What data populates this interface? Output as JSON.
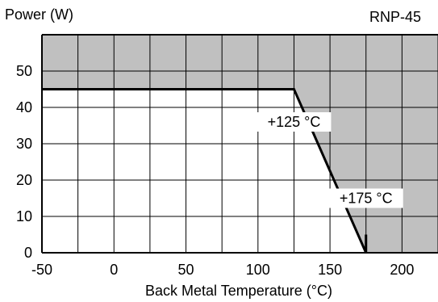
{
  "chart_data": {
    "type": "line",
    "title": "RNP-45",
    "ylabel": "Power (W)",
    "xlabel": "Back Metal Temperature (°C)",
    "xlim": [
      -50,
      225
    ],
    "ylim": [
      0,
      60
    ],
    "x_ticks": [
      -50,
      0,
      50,
      100,
      150,
      200
    ],
    "y_ticks": [
      0,
      10,
      20,
      30,
      40,
      50
    ],
    "x_grid_step": 25,
    "y_grid_step": 10,
    "grid": true,
    "series": [
      {
        "name": "",
        "x": [
          -50,
          125,
          175,
          175
        ],
        "y": [
          45,
          45,
          0,
          5
        ]
      }
    ],
    "annotations": [
      {
        "text": "+125 °C",
        "x": 125,
        "y": 36
      },
      {
        "text": "+175 °C",
        "x": 175,
        "y": 15
      }
    ],
    "colors": {
      "shaded_region": "#c0c0c0",
      "line": "#000000",
      "grid": "#000000"
    }
  }
}
